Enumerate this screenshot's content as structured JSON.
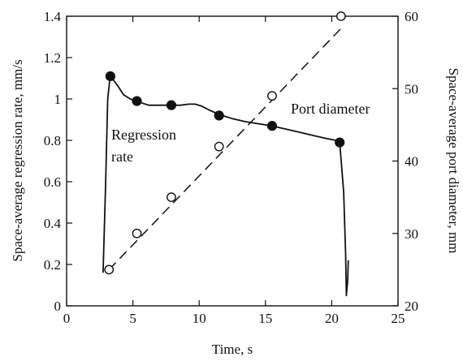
{
  "chart_data": {
    "type": "line",
    "xlabel": "Time, s",
    "ylabel_left": "Space-average regression rate, mm/s",
    "ylabel_right": "Space-average port diameter, mm",
    "xlim": [
      0,
      25
    ],
    "ylim_left": [
      0,
      1.4
    ],
    "ylim_right": [
      20,
      60
    ],
    "x_ticks": [
      0,
      5,
      10,
      15,
      20,
      25
    ],
    "y_ticks_left": [
      0,
      0.2,
      0.4,
      0.6,
      0.8,
      1.0,
      1.2,
      1.4
    ],
    "y_ticks_right": [
      20,
      30,
      40,
      50,
      60
    ],
    "x_tick_labels": [
      "0",
      "5",
      "10",
      "15",
      "20",
      "25"
    ],
    "y_tick_labels_left": [
      "0",
      "0.2",
      "0.4",
      "0.6",
      "0.8",
      "1",
      "1.2",
      "1.4"
    ],
    "y_tick_labels_right": [
      "20",
      "30",
      "40",
      "50",
      "60"
    ],
    "grid": false,
    "annotations": [
      {
        "text": "Regression",
        "series": "regression_rate"
      },
      {
        "text": "rate",
        "series": "regression_rate"
      },
      {
        "text": "Port diameter",
        "series": "port_diameter"
      }
    ],
    "series": [
      {
        "key": "regression_rate",
        "axis": "left",
        "style": "solid",
        "marker": "filled-circle",
        "curve": [
          [
            2.75,
            0.16
          ],
          [
            2.95,
            0.6
          ],
          [
            3.1,
            1.0
          ],
          [
            3.3,
            1.12
          ],
          [
            3.55,
            1.09
          ],
          [
            3.9,
            1.06
          ],
          [
            4.3,
            1.02
          ],
          [
            4.8,
            1.0
          ],
          [
            5.3,
            0.99
          ],
          [
            5.7,
            0.98
          ],
          [
            6.2,
            0.97
          ],
          [
            7.0,
            0.97
          ],
          [
            7.9,
            0.97
          ],
          [
            8.6,
            0.97
          ],
          [
            9.2,
            0.975
          ],
          [
            9.7,
            0.975
          ],
          [
            10.2,
            0.965
          ],
          [
            10.8,
            0.945
          ],
          [
            11.5,
            0.925
          ],
          [
            12.5,
            0.905
          ],
          [
            13.5,
            0.89
          ],
          [
            14.5,
            0.88
          ],
          [
            15.5,
            0.87
          ],
          [
            16.5,
            0.855
          ],
          [
            17.5,
            0.84
          ],
          [
            18.5,
            0.825
          ],
          [
            19.5,
            0.81
          ],
          [
            20.3,
            0.8
          ],
          [
            20.6,
            0.79
          ],
          [
            20.9,
            0.55
          ],
          [
            21.05,
            0.25
          ],
          [
            21.1,
            0.05
          ],
          [
            21.2,
            0.12
          ],
          [
            21.25,
            0.22
          ]
        ],
        "markers": [
          [
            3.3,
            1.11
          ],
          [
            5.3,
            0.99
          ],
          [
            7.9,
            0.97
          ],
          [
            11.5,
            0.92
          ],
          [
            15.5,
            0.87
          ],
          [
            20.6,
            0.79
          ]
        ]
      },
      {
        "key": "port_diameter",
        "axis": "right",
        "style": "dashed",
        "marker": "open-circle",
        "line": [
          [
            3.2,
            25
          ],
          [
            20.8,
            58.5
          ]
        ],
        "markers": [
          [
            3.2,
            25
          ],
          [
            5.3,
            30
          ],
          [
            7.9,
            35
          ],
          [
            11.5,
            42
          ],
          [
            15.5,
            49
          ],
          [
            20.7,
            60
          ]
        ]
      }
    ]
  }
}
